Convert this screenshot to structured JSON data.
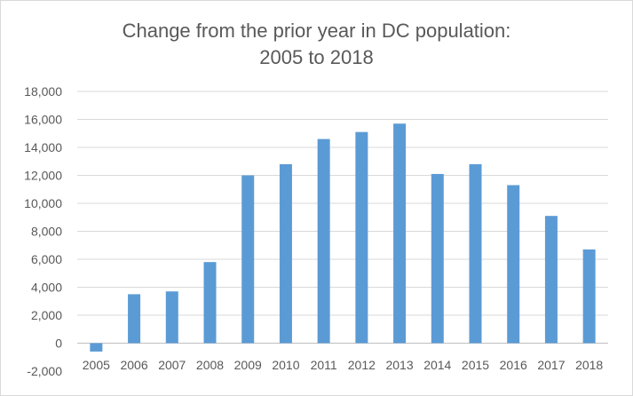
{
  "chart_data": {
    "type": "bar",
    "title": "Change from the prior year in DC population:",
    "subtitle": "2005 to 2018",
    "xlabel": "",
    "ylabel": "",
    "categories": [
      "2005",
      "2006",
      "2007",
      "2008",
      "2009",
      "2010",
      "2011",
      "2012",
      "2013",
      "2014",
      "2015",
      "2016",
      "2017",
      "2018"
    ],
    "values": [
      -600,
      3500,
      3700,
      5800,
      12000,
      12800,
      14600,
      15100,
      15700,
      12100,
      12800,
      11300,
      9100,
      6700
    ],
    "ylim": [
      -2000,
      18000
    ],
    "yticks": [
      -2000,
      0,
      2000,
      4000,
      6000,
      8000,
      10000,
      12000,
      14000,
      16000,
      18000
    ],
    "ytick_labels": [
      "-2,000",
      "0",
      "2,000",
      "4,000",
      "6,000",
      "8,000",
      "10,000",
      "12,000",
      "14,000",
      "16,000",
      "18,000"
    ],
    "bar_color": "#5b9bd5",
    "grid_color": "#d9d9d9",
    "grid": true,
    "legend": "none"
  }
}
